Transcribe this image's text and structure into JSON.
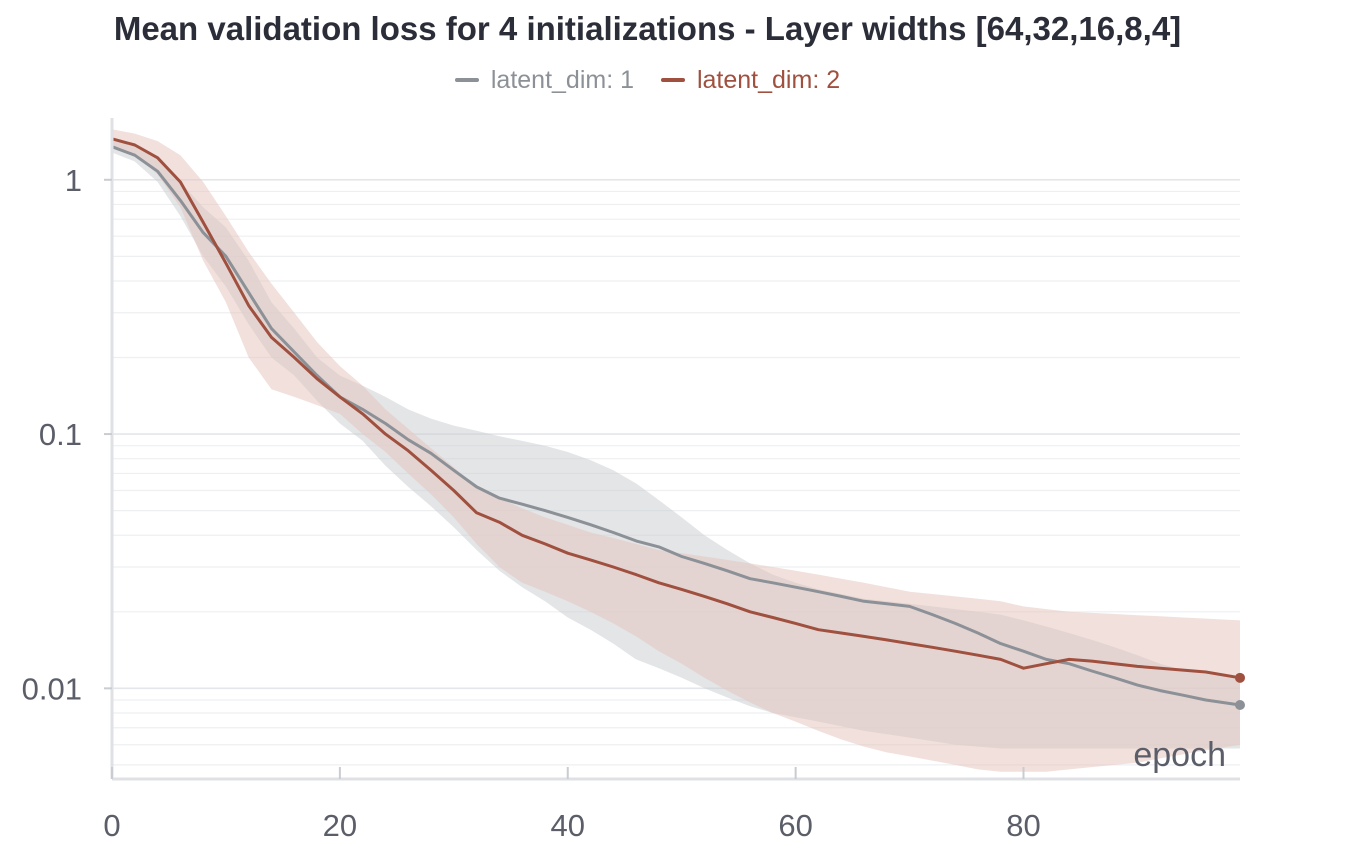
{
  "chart_data": {
    "type": "line",
    "title": "Mean validation loss for 4 initializations - Layer widths [64,32,16,8,4]",
    "xlabel": "epoch",
    "ylabel": "",
    "yscale": "log",
    "xlim": [
      0,
      99
    ],
    "ylim": [
      0.0044,
      1.75
    ],
    "xticks": [
      0,
      20,
      40,
      60,
      80
    ],
    "yticks": [
      1,
      0.1,
      0.01
    ],
    "ytick_labels": [
      "1",
      "0.1",
      "0.01"
    ],
    "grid": true,
    "legend": "top-center",
    "series": [
      {
        "name": "latent_dim: 1",
        "color": "#8c9197",
        "band_color": "#ccd0d4",
        "x": [
          0,
          2,
          4,
          6,
          8,
          10,
          12,
          14,
          16,
          18,
          20,
          22,
          24,
          26,
          28,
          30,
          32,
          34,
          36,
          38,
          40,
          42,
          44,
          46,
          48,
          50,
          52,
          54,
          56,
          58,
          60,
          62,
          64,
          66,
          68,
          70,
          72,
          74,
          76,
          78,
          80,
          82,
          84,
          86,
          88,
          90,
          92,
          94,
          96,
          99
        ],
        "values": [
          1.35,
          1.25,
          1.08,
          0.83,
          0.62,
          0.5,
          0.36,
          0.26,
          0.21,
          0.17,
          0.14,
          0.125,
          0.11,
          0.095,
          0.084,
          0.072,
          0.062,
          0.056,
          0.053,
          0.05,
          0.047,
          0.044,
          0.041,
          0.038,
          0.036,
          0.033,
          0.031,
          0.029,
          0.027,
          0.026,
          0.025,
          0.024,
          0.023,
          0.022,
          0.0215,
          0.021,
          0.0195,
          0.018,
          0.0165,
          0.015,
          0.014,
          0.013,
          0.0125,
          0.0117,
          0.011,
          0.0103,
          0.0098,
          0.0094,
          0.009,
          0.0086
        ],
        "lower": [
          1.28,
          1.18,
          0.98,
          0.72,
          0.5,
          0.38,
          0.27,
          0.2,
          0.17,
          0.135,
          0.11,
          0.094,
          0.075,
          0.062,
          0.052,
          0.043,
          0.035,
          0.029,
          0.025,
          0.022,
          0.019,
          0.017,
          0.015,
          0.013,
          0.012,
          0.011,
          0.01,
          0.0092,
          0.0085,
          0.008,
          0.0077,
          0.0074,
          0.0071,
          0.0068,
          0.0066,
          0.0064,
          0.0062,
          0.006,
          0.0059,
          0.0058,
          0.0058,
          0.0058,
          0.0058,
          0.0058,
          0.0058,
          0.0058,
          0.0058,
          0.0058,
          0.0058,
          0.0058
        ],
        "upper": [
          1.45,
          1.35,
          1.2,
          0.98,
          0.78,
          0.65,
          0.48,
          0.33,
          0.26,
          0.2,
          0.17,
          0.155,
          0.14,
          0.125,
          0.115,
          0.108,
          0.103,
          0.098,
          0.094,
          0.09,
          0.085,
          0.079,
          0.072,
          0.064,
          0.055,
          0.047,
          0.04,
          0.035,
          0.031,
          0.028,
          0.026,
          0.0245,
          0.0235,
          0.0225,
          0.022,
          0.0215,
          0.021,
          0.0205,
          0.02,
          0.0195,
          0.0185,
          0.0175,
          0.0165,
          0.0155,
          0.0145,
          0.0135,
          0.0125,
          0.0118,
          0.0114,
          0.011
        ]
      },
      {
        "name": "latent_dim: 2",
        "color": "#a0503f",
        "band_color": "#e6c6bf",
        "x": [
          0,
          2,
          4,
          6,
          8,
          10,
          12,
          14,
          16,
          18,
          20,
          22,
          24,
          26,
          28,
          30,
          32,
          34,
          36,
          38,
          40,
          42,
          44,
          46,
          48,
          50,
          52,
          54,
          56,
          58,
          60,
          62,
          64,
          66,
          68,
          70,
          72,
          74,
          76,
          78,
          80,
          82,
          84,
          86,
          88,
          90,
          92,
          94,
          96,
          99
        ],
        "values": [
          1.45,
          1.37,
          1.22,
          0.98,
          0.68,
          0.47,
          0.32,
          0.24,
          0.2,
          0.165,
          0.14,
          0.12,
          0.1,
          0.086,
          0.072,
          0.06,
          0.049,
          0.045,
          0.04,
          0.037,
          0.034,
          0.032,
          0.03,
          0.028,
          0.026,
          0.0245,
          0.023,
          0.0215,
          0.02,
          0.019,
          0.018,
          0.017,
          0.0165,
          0.016,
          0.0155,
          0.015,
          0.0145,
          0.014,
          0.0135,
          0.013,
          0.012,
          0.0125,
          0.013,
          0.0128,
          0.0125,
          0.0122,
          0.012,
          0.0118,
          0.0116,
          0.011
        ],
        "lower": [
          1.35,
          1.25,
          1.05,
          0.78,
          0.48,
          0.33,
          0.2,
          0.15,
          0.14,
          0.13,
          0.12,
          0.1,
          0.085,
          0.07,
          0.058,
          0.047,
          0.037,
          0.03,
          0.026,
          0.024,
          0.022,
          0.02,
          0.018,
          0.016,
          0.014,
          0.0125,
          0.011,
          0.0098,
          0.0088,
          0.008,
          0.0074,
          0.0068,
          0.0063,
          0.0059,
          0.0056,
          0.0054,
          0.0052,
          0.005,
          0.0048,
          0.0047,
          0.0047,
          0.0047,
          0.0048,
          0.0049,
          0.005,
          0.0051,
          0.0053,
          0.0055,
          0.0057,
          0.006
        ],
        "upper": [
          1.58,
          1.52,
          1.42,
          1.25,
          0.98,
          0.72,
          0.52,
          0.39,
          0.3,
          0.23,
          0.185,
          0.155,
          0.125,
          0.105,
          0.088,
          0.074,
          0.062,
          0.056,
          0.051,
          0.047,
          0.044,
          0.041,
          0.039,
          0.037,
          0.035,
          0.034,
          0.033,
          0.032,
          0.031,
          0.03,
          0.029,
          0.028,
          0.027,
          0.026,
          0.025,
          0.024,
          0.0235,
          0.023,
          0.0225,
          0.022,
          0.021,
          0.0205,
          0.02,
          0.0198,
          0.0196,
          0.0194,
          0.0192,
          0.019,
          0.0188,
          0.0185
        ]
      }
    ]
  }
}
